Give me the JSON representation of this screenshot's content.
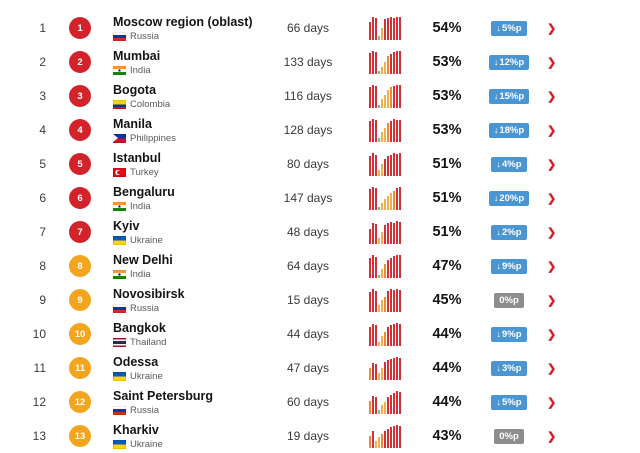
{
  "icons": {
    "down_arrow": "↓",
    "chevron_right": "❯"
  },
  "colors": {
    "rank_badge_red": "#d2232a",
    "rank_badge_orange": "#f2a51d",
    "change_down_bg": "#4a96d2",
    "change_zero_bg": "#8d8d8d",
    "chevron_red": "#d2232a",
    "bars": {
      "r": "#d13239",
      "y": "#f0b14a",
      "o": "#e98d36",
      "g": "#7cc079"
    }
  },
  "table": {
    "rows": [
      {
        "rank": "1",
        "badge_color": "#d2232a",
        "city": "Moscow region (oblast)",
        "country": "Russia",
        "flag": "russia",
        "days": "66 days",
        "congestion": "54%",
        "change": {
          "label": "5%p",
          "direction": "down",
          "color": "#4a96d2"
        },
        "chart_bars": [
          [
            "r",
            0.78
          ],
          [
            "r",
            1
          ],
          [
            "r",
            0.95
          ],
          [
            "g",
            0.14
          ],
          [
            "y",
            0.5
          ],
          [
            "r",
            0.88
          ],
          [
            "r",
            0.95
          ],
          [
            "r",
            1
          ],
          [
            "r",
            0.95
          ],
          [
            "r",
            1
          ],
          [
            "r",
            0.97
          ]
        ]
      },
      {
        "rank": "2",
        "badge_color": "#d2232a",
        "city": "Mumbai",
        "country": "India",
        "flag": "india",
        "days": "133 days",
        "congestion": "53%",
        "change": {
          "label": "12%p",
          "direction": "down",
          "color": "#4a96d2"
        },
        "chart_bars": [
          [
            "r",
            0.9
          ],
          [
            "r",
            1
          ],
          [
            "r",
            0.95
          ],
          [
            "g",
            0.12
          ],
          [
            "y",
            0.3
          ],
          [
            "y",
            0.52
          ],
          [
            "o",
            0.75
          ],
          [
            "r",
            0.85
          ],
          [
            "r",
            0.92
          ],
          [
            "r",
            1
          ],
          [
            "r",
            0.97
          ]
        ]
      },
      {
        "rank": "3",
        "badge_color": "#d2232a",
        "city": "Bogota",
        "country": "Colombia",
        "flag": "colombia",
        "days": "116 days",
        "congestion": "53%",
        "change": {
          "label": "15%p",
          "direction": "down",
          "color": "#4a96d2"
        },
        "chart_bars": [
          [
            "r",
            0.9
          ],
          [
            "r",
            1
          ],
          [
            "r",
            0.95
          ],
          [
            "g",
            0.12
          ],
          [
            "y",
            0.35
          ],
          [
            "y",
            0.55
          ],
          [
            "y",
            0.75
          ],
          [
            "o",
            0.88
          ],
          [
            "r",
            0.95
          ],
          [
            "r",
            1
          ],
          [
            "r",
            0.97
          ]
        ]
      },
      {
        "rank": "4",
        "badge_color": "#d2232a",
        "city": "Manila",
        "country": "Philippines",
        "flag": "philippines",
        "days": "128 days",
        "congestion": "53%",
        "change": {
          "label": "18%p",
          "direction": "down",
          "color": "#4a96d2"
        },
        "chart_bars": [
          [
            "r",
            0.9
          ],
          [
            "r",
            1
          ],
          [
            "r",
            0.95
          ],
          [
            "g",
            0.14
          ],
          [
            "y",
            0.4
          ],
          [
            "y",
            0.6
          ],
          [
            "o",
            0.8
          ],
          [
            "r",
            0.9
          ],
          [
            "r",
            1
          ],
          [
            "r",
            0.95
          ],
          [
            "r",
            0.92
          ]
        ]
      },
      {
        "rank": "5",
        "badge_color": "#d2232a",
        "city": "Istanbul",
        "country": "Turkey",
        "flag": "turkey",
        "days": "80 days",
        "congestion": "51%",
        "change": {
          "label": "4%p",
          "direction": "down",
          "color": "#4a96d2"
        },
        "chart_bars": [
          [
            "r",
            0.85
          ],
          [
            "r",
            1
          ],
          [
            "r",
            0.9
          ],
          [
            "y",
            0.22
          ],
          [
            "y",
            0.5
          ],
          [
            "r",
            0.72
          ],
          [
            "r",
            0.85
          ],
          [
            "r",
            0.9
          ],
          [
            "r",
            1
          ],
          [
            "r",
            0.95
          ],
          [
            "r",
            1
          ]
        ]
      },
      {
        "rank": "6",
        "badge_color": "#d2232a",
        "city": "Bengaluru",
        "country": "India",
        "flag": "india",
        "days": "147 days",
        "congestion": "51%",
        "change": {
          "label": "20%p",
          "direction": "down",
          "color": "#4a96d2"
        },
        "chart_bars": [
          [
            "r",
            0.9
          ],
          [
            "r",
            1
          ],
          [
            "r",
            0.95
          ],
          [
            "g",
            0.12
          ],
          [
            "y",
            0.3
          ],
          [
            "y",
            0.45
          ],
          [
            "y",
            0.6
          ],
          [
            "y",
            0.72
          ],
          [
            "o",
            0.82
          ],
          [
            "r",
            0.95
          ],
          [
            "r",
            1
          ]
        ]
      },
      {
        "rank": "7",
        "badge_color": "#d2232a",
        "city": "Kyiv",
        "country": "Ukraine",
        "flag": "ukraine",
        "days": "48 days",
        "congestion": "51%",
        "change": {
          "label": "2%p",
          "direction": "down",
          "color": "#4a96d2"
        },
        "chart_bars": [
          [
            "r",
            0.62
          ],
          [
            "r",
            0.9
          ],
          [
            "r",
            0.85
          ],
          [
            "y",
            0.22
          ],
          [
            "y",
            0.48
          ],
          [
            "r",
            0.8
          ],
          [
            "r",
            0.9
          ],
          [
            "r",
            0.95
          ],
          [
            "r",
            0.9
          ],
          [
            "r",
            1
          ],
          [
            "r",
            0.95
          ]
        ]
      },
      {
        "rank": "8",
        "badge_color": "#f2a51d",
        "city": "New Delhi",
        "country": "India",
        "flag": "india",
        "days": "64 days",
        "congestion": "47%",
        "change": {
          "label": "9%p",
          "direction": "down",
          "color": "#4a96d2"
        },
        "chart_bars": [
          [
            "r",
            0.85
          ],
          [
            "r",
            1
          ],
          [
            "r",
            0.9
          ],
          [
            "g",
            0.1
          ],
          [
            "y",
            0.35
          ],
          [
            "o",
            0.6
          ],
          [
            "r",
            0.75
          ],
          [
            "r",
            0.85
          ],
          [
            "r",
            0.95
          ],
          [
            "r",
            1
          ],
          [
            "r",
            1
          ]
        ]
      },
      {
        "rank": "9",
        "badge_color": "#f2a51d",
        "city": "Novosibirsk",
        "country": "Russia",
        "flag": "russia",
        "days": "15 days",
        "congestion": "45%",
        "change": {
          "label": "0%p",
          "direction": "none",
          "color": "#8d8d8d"
        },
        "chart_bars": [
          [
            "r",
            0.85
          ],
          [
            "r",
            1
          ],
          [
            "r",
            0.9
          ],
          [
            "y",
            0.3
          ],
          [
            "y",
            0.5
          ],
          [
            "o",
            0.65
          ],
          [
            "r",
            0.9
          ],
          [
            "r",
            1
          ],
          [
            "r",
            0.95
          ],
          [
            "r",
            1
          ],
          [
            "r",
            0.95
          ]
        ]
      },
      {
        "rank": "10",
        "badge_color": "#f2a51d",
        "city": "Bangkok",
        "country": "Thailand",
        "flag": "thailand",
        "days": "44 days",
        "congestion": "44%",
        "change": {
          "label": "9%p",
          "direction": "down",
          "color": "#4a96d2"
        },
        "chart_bars": [
          [
            "r",
            0.8
          ],
          [
            "r",
            0.95
          ],
          [
            "r",
            0.9
          ],
          [
            "y",
            0.15
          ],
          [
            "y",
            0.4
          ],
          [
            "o",
            0.6
          ],
          [
            "r",
            0.8
          ],
          [
            "r",
            0.9
          ],
          [
            "r",
            0.95
          ],
          [
            "r",
            1
          ],
          [
            "r",
            0.95
          ]
        ]
      },
      {
        "rank": "11",
        "badge_color": "#f2a51d",
        "city": "Odessa",
        "country": "Ukraine",
        "flag": "ukraine",
        "days": "47 days",
        "congestion": "44%",
        "change": {
          "label": "3%p",
          "direction": "down",
          "color": "#4a96d2"
        },
        "chart_bars": [
          [
            "o",
            0.5
          ],
          [
            "r",
            0.72
          ],
          [
            "r",
            0.66
          ],
          [
            "y",
            0.3
          ],
          [
            "y",
            0.5
          ],
          [
            "r",
            0.75
          ],
          [
            "r",
            0.85
          ],
          [
            "r",
            0.9
          ],
          [
            "r",
            0.95
          ],
          [
            "r",
            1
          ],
          [
            "r",
            0.95
          ]
        ]
      },
      {
        "rank": "12",
        "badge_color": "#f2a51d",
        "city": "Saint Petersburg",
        "country": "Russia",
        "flag": "russia",
        "days": "60 days",
        "congestion": "44%",
        "change": {
          "label": "5%p",
          "direction": "down",
          "color": "#4a96d2"
        },
        "chart_bars": [
          [
            "o",
            0.55
          ],
          [
            "r",
            0.75
          ],
          [
            "r",
            0.7
          ],
          [
            "g",
            0.15
          ],
          [
            "y",
            0.35
          ],
          [
            "y",
            0.5
          ],
          [
            "r",
            0.7
          ],
          [
            "r",
            0.8
          ],
          [
            "r",
            0.9
          ],
          [
            "r",
            1
          ],
          [
            "r",
            0.95
          ]
        ]
      },
      {
        "rank": "13",
        "badge_color": "#f2a51d",
        "city": "Kharkiv",
        "country": "Ukraine",
        "flag": "ukraine",
        "days": "19 days",
        "congestion": "43%",
        "change": {
          "label": "0%p",
          "direction": "none",
          "color": "#8d8d8d"
        },
        "chart_bars": [
          [
            "o",
            0.5
          ],
          [
            "r",
            0.7
          ],
          [
            "y",
            0.3
          ],
          [
            "y",
            0.45
          ],
          [
            "o",
            0.6
          ],
          [
            "r",
            0.72
          ],
          [
            "r",
            0.82
          ],
          [
            "r",
            0.9
          ],
          [
            "r",
            0.95
          ],
          [
            "r",
            1
          ],
          [
            "r",
            0.95
          ]
        ]
      }
    ]
  }
}
